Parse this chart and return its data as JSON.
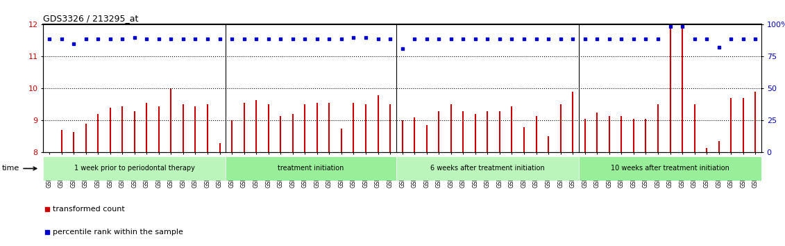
{
  "title": "GDS3326 / 213295_at",
  "samples": [
    "GSM155448",
    "GSM155452",
    "GSM155455",
    "GSM155459",
    "GSM155463",
    "GSM155467",
    "GSM155471",
    "GSM155475",
    "GSM155479",
    "GSM155483",
    "GSM155487",
    "GSM155491",
    "GSM155495",
    "GSM155499",
    "GSM155503",
    "GSM155449",
    "GSM155456",
    "GSM155460",
    "GSM155464",
    "GSM155468",
    "GSM155472",
    "GSM155476",
    "GSM155480",
    "GSM155484",
    "GSM155488",
    "GSM155492",
    "GSM155496",
    "GSM155500",
    "GSM155504",
    "GSM155450",
    "GSM155453",
    "GSM155457",
    "GSM155461",
    "GSM155465",
    "GSM155469",
    "GSM155473",
    "GSM155477",
    "GSM155481",
    "GSM155485",
    "GSM155489",
    "GSM155493",
    "GSM155497",
    "GSM155501",
    "GSM155505",
    "GSM155451",
    "GSM155454",
    "GSM155458",
    "GSM155462",
    "GSM155466",
    "GSM155470",
    "GSM155474",
    "GSM155478",
    "GSM155482",
    "GSM155486",
    "GSM155490",
    "GSM155494",
    "GSM155498",
    "GSM155502",
    "GSM155506"
  ],
  "bar_values": [
    8.0,
    8.7,
    8.65,
    8.9,
    9.2,
    9.4,
    9.45,
    9.3,
    9.55,
    9.45,
    10.0,
    9.5,
    9.45,
    9.5,
    8.3,
    9.0,
    9.55,
    9.65,
    9.5,
    9.15,
    9.2,
    9.5,
    9.55,
    9.55,
    8.75,
    9.55,
    9.5,
    9.8,
    9.5,
    9.0,
    9.1,
    8.85,
    9.3,
    9.5,
    9.3,
    9.2,
    9.3,
    9.3,
    9.45,
    8.8,
    9.15,
    8.5,
    9.5,
    9.9,
    9.05,
    9.25,
    9.15,
    9.15,
    9.05,
    9.05,
    9.5,
    11.9,
    12.0,
    9.5,
    8.15,
    8.35,
    9.7,
    9.7,
    9.9
  ],
  "percentile_values": [
    11.55,
    11.55,
    11.4,
    11.55,
    11.55,
    11.55,
    11.55,
    11.6,
    11.55,
    11.55,
    11.55,
    11.55,
    11.55,
    11.55,
    11.55,
    11.55,
    11.55,
    11.55,
    11.55,
    11.55,
    11.55,
    11.55,
    11.55,
    11.55,
    11.55,
    11.6,
    11.6,
    11.55,
    11.55,
    11.25,
    11.55,
    11.55,
    11.55,
    11.55,
    11.55,
    11.55,
    11.55,
    11.55,
    11.55,
    11.55,
    11.55,
    11.55,
    11.55,
    11.55,
    11.55,
    11.55,
    11.55,
    11.55,
    11.55,
    11.55,
    11.55,
    11.95,
    11.95,
    11.55,
    11.55,
    11.3,
    11.55,
    11.55,
    11.55
  ],
  "group_boundaries": [
    0,
    15,
    29,
    44,
    59
  ],
  "group_labels": [
    "1 week prior to periodontal therapy",
    "treatment initiation",
    "6 weeks after treatment initiation",
    "10 weeks after treatment initiation"
  ],
  "ylim_left": [
    8,
    12
  ],
  "ylim_right": [
    0,
    100
  ],
  "yticks_left": [
    8,
    9,
    10,
    11,
    12
  ],
  "yticks_right": [
    0,
    25,
    50,
    75,
    100
  ],
  "ytick_right_labels": [
    "0",
    "25",
    "50",
    "75",
    "100%"
  ],
  "bar_color": "#CC0000",
  "dot_color": "#0000CC",
  "baseline": 8.0,
  "grid_lines": [
    9,
    10,
    11
  ],
  "bg_color": "#ffffff",
  "plot_bg": "#ffffff",
  "lighter_green": "#bbf5bb",
  "darker_green": "#99ee99"
}
